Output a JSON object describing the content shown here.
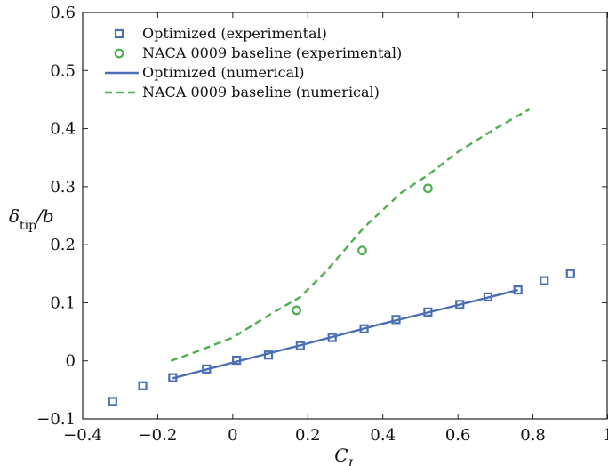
{
  "chart_data": {
    "type": "scatter",
    "xlabel": "C_L",
    "ylabel": "δ_tip/b",
    "xlim": [
      -0.4,
      1.0
    ],
    "ylim": [
      -0.1,
      0.6
    ],
    "xticks": [
      "−0.4",
      "−0.2",
      "0",
      "0.2",
      "0.4",
      "0.6",
      "0.8",
      "1"
    ],
    "yticks": [
      "−0.1",
      "0",
      "0.1",
      "0.2",
      "0.3",
      "0.4",
      "0.5",
      "0.6"
    ],
    "xtick_values": [
      -0.4,
      -0.2,
      0,
      0.2,
      0.4,
      0.6,
      0.8,
      1.0
    ],
    "ytick_values": [
      -0.1,
      0,
      0.1,
      0.2,
      0.3,
      0.4,
      0.5,
      0.6
    ],
    "grid": false,
    "legend_position": "top-left",
    "series": [
      {
        "name": "Optimized (experimental)",
        "kind": "marker-square",
        "color": "#4a6fb5",
        "x": [
          -0.32,
          -0.24,
          -0.16,
          -0.07,
          0.01,
          0.095,
          0.18,
          0.265,
          0.35,
          0.435,
          0.52,
          0.605,
          0.68,
          0.76,
          0.83,
          0.9
        ],
        "y": [
          -0.07,
          -0.043,
          -0.029,
          -0.014,
          0.001,
          0.01,
          0.026,
          0.04,
          0.055,
          0.071,
          0.084,
          0.097,
          0.11,
          0.122,
          0.138,
          0.15
        ]
      },
      {
        "name": "NACA 0009 baseline (experimental)",
        "kind": "marker-circle",
        "color": "#4caf50",
        "x": [
          0.17,
          0.345,
          0.52
        ],
        "y": [
          0.087,
          0.19,
          0.297
        ]
      },
      {
        "name": "Optimized (numerical)",
        "kind": "line-solid",
        "color": "#4a6fb5",
        "x": [
          -0.16,
          0.0,
          0.2,
          0.4,
          0.6,
          0.76
        ],
        "y": [
          -0.03,
          -0.003,
          0.03,
          0.064,
          0.096,
          0.122
        ]
      },
      {
        "name": "NACA 0009 baseline (numerical)",
        "kind": "line-dashed",
        "color": "#4caf50",
        "x": [
          -0.165,
          -0.1,
          0.0,
          0.1,
          0.18,
          0.25,
          0.35,
          0.45,
          0.52,
          0.6,
          0.7,
          0.79
        ],
        "y": [
          0.0,
          0.015,
          0.04,
          0.08,
          0.11,
          0.155,
          0.23,
          0.29,
          0.32,
          0.36,
          0.4,
          0.433
        ]
      }
    ]
  }
}
